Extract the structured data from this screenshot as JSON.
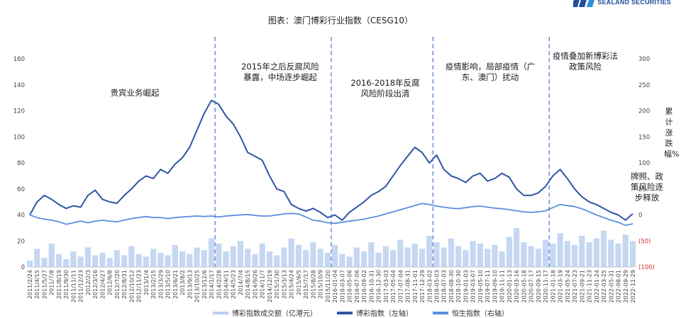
{
  "brand": {
    "name": "SEALAND SECURITIES"
  },
  "chart_data": {
    "type": "line",
    "title": "图表：澳门博彩行业指数（CESG10）",
    "ylabel_right": "累计涨跌幅%",
    "y_left": {
      "ticks": [
        "0",
        "20",
        "40",
        "60",
        "80",
        "100",
        "120",
        "140",
        "160"
      ],
      "lim": [
        0,
        160
      ]
    },
    "y_right": {
      "ticks": [
        "(100)",
        "(50)",
        "0",
        "50",
        "100",
        "150",
        "200",
        "250",
        "300"
      ],
      "lim": [
        -100,
        300
      ],
      "negative_color": "#d32f2f"
    },
    "x_tick_labels": [
      "2011/2/24",
      "2011/4/15",
      "2011/5/27",
      "2011/7/8",
      "2011/8/19",
      "2011/9/30",
      "2011/11/11",
      "2011/12/23",
      "2012/2/3",
      "2012/3/16",
      "2012/4/27",
      "2012/6/8",
      "2012/7/20",
      "2012/8/31",
      "2012/10/12",
      "2012/11/23",
      "2013/1/4",
      "2013/2/15",
      "2013/3/29",
      "2013/5/10",
      "2013/6/21",
      "2013/8/2",
      "2013/9/13",
      "2013/10/25",
      "2013/12/6",
      "2014/1/17",
      "2014/2/28",
      "2014/4/11",
      "2014/5/23",
      "2014/7/4",
      "2014/8/15",
      "2014/9/26",
      "2014/11/7",
      "2014/12/19",
      "2015/1/30",
      "2015/3/13",
      "2015/4/24",
      "2015/6/5",
      "2015/7/17",
      "2015/8/28",
      "2015/10/9",
      "2015/11/20",
      "2016-01-04",
      "2016-03-07",
      "2016-05-06",
      "2016-07-06",
      "2016-09-02",
      "2016-10-31",
      "2016-12-30",
      "2017-03-03",
      "2017-05-04",
      "2017-07-04",
      "2017-08-31",
      "2017-11-01",
      "2017-12-29",
      "2018-03-02",
      "2018-05-03",
      "2018-07-03",
      "2018-08-30",
      "2018-10-30",
      "2019-01-03",
      "2019-03-07",
      "2019-05-10",
      "2019-07-11",
      "2019-09-10",
      "2019-11-11",
      "2020-01-13",
      "2020-03-16",
      "2020-05-18",
      "2020-07-17",
      "2020-09-15",
      "2020-11-17",
      "2021-01-18",
      "2021-03-19",
      "2021-05-24",
      "2021-07-23",
      "2021-09-21",
      "2021-11-23",
      "2022-01-24",
      "2022-03-25",
      "2022-05-31",
      "2022-08-01",
      "2022-09-29",
      "2022-11-29"
    ],
    "series": [
      {
        "name": "博彩指数成交额（亿港元）",
        "axis": "left",
        "style": "area",
        "color": "#bcd0ee",
        "values": [
          5,
          14,
          7,
          18,
          10,
          6,
          12,
          8,
          15,
          9,
          11,
          7,
          13,
          9,
          16,
          10,
          8,
          14,
          11,
          9,
          17,
          12,
          10,
          15,
          13,
          22,
          18,
          12,
          16,
          20,
          14,
          10,
          18,
          12,
          9,
          15,
          22,
          17,
          13,
          19,
          14,
          11,
          17,
          10,
          8,
          15,
          12,
          19,
          11,
          16,
          13,
          21,
          15,
          18,
          14,
          24,
          19,
          15,
          22,
          16,
          13,
          20,
          18,
          14,
          17,
          12,
          23,
          30,
          19,
          16,
          14,
          21,
          18,
          26,
          20,
          17,
          24,
          19,
          22,
          28,
          21,
          18,
          25,
          20
        ]
      },
      {
        "name": "博彩指数（左轴）",
        "axis": "left",
        "style": "line",
        "color": "#2f55a4",
        "values": [
          40,
          50,
          55,
          52,
          48,
          45,
          47,
          46,
          55,
          59,
          52,
          50,
          49,
          55,
          60,
          66,
          70,
          68,
          75,
          72,
          79,
          84,
          92,
          105,
          118,
          128,
          125,
          116,
          110,
          100,
          88,
          85,
          82,
          70,
          60,
          58,
          48,
          45,
          43,
          45,
          42,
          38,
          40,
          36,
          42,
          46,
          50,
          55,
          58,
          62,
          70,
          78,
          85,
          92,
          88,
          80,
          86,
          75,
          70,
          68,
          65,
          70,
          72,
          66,
          68,
          72,
          69,
          60,
          55,
          55,
          57,
          62,
          70,
          75,
          68,
          60,
          54,
          50,
          48,
          45,
          42,
          40,
          36,
          41
        ]
      },
      {
        "name": "恒生指数（右轴）",
        "axis": "right",
        "style": "line",
        "color": "#5b8ee0",
        "values": [
          0,
          -5,
          -8,
          -10,
          -13,
          -18,
          -15,
          -12,
          -15,
          -12,
          -10,
          -12,
          -13,
          -10,
          -7,
          -5,
          -3,
          -5,
          -5,
          -7,
          -5,
          -4,
          -3,
          -2,
          -3,
          -2,
          -4,
          -2,
          -1,
          0,
          1,
          -1,
          -2,
          -2,
          0,
          2,
          3,
          2,
          -4,
          -10,
          -12,
          -15,
          -16,
          -14,
          -12,
          -10,
          -8,
          -5,
          -2,
          2,
          6,
          10,
          14,
          18,
          22,
          20,
          17,
          15,
          13,
          12,
          14,
          16,
          17,
          15,
          13,
          12,
          10,
          8,
          6,
          5,
          6,
          8,
          14,
          20,
          18,
          16,
          12,
          6,
          0,
          -5,
          -10,
          -14,
          -20,
          -17
        ]
      }
    ],
    "dividers_after_date": [
      "2014/1/17",
      "2015/11/20",
      "2018-03-02",
      "2020-11-17"
    ],
    "annotations": [
      {
        "text": [
          "贵宾业务崛起"
        ]
      },
      {
        "text": [
          "2015年之后反腐风险",
          "暴露，中场逐步崛起"
        ]
      },
      {
        "text": [
          "2016-2018年反腐",
          "风险阶段出清"
        ]
      },
      {
        "text": [
          "疫情影响，局部疫情（广",
          "东、澳门）扰动"
        ]
      },
      {
        "text": [
          "疫情叠加新博彩法",
          "政策风险"
        ]
      },
      {
        "text": [
          "牌照、政",
          "策风险逐",
          "步释放"
        ]
      }
    ],
    "legend": {
      "position": "bottom",
      "items": [
        "博彩指数成交额（亿港元）",
        "博彩指数（左轴）",
        "恒生指数（右轴）"
      ]
    },
    "grid": false
  }
}
